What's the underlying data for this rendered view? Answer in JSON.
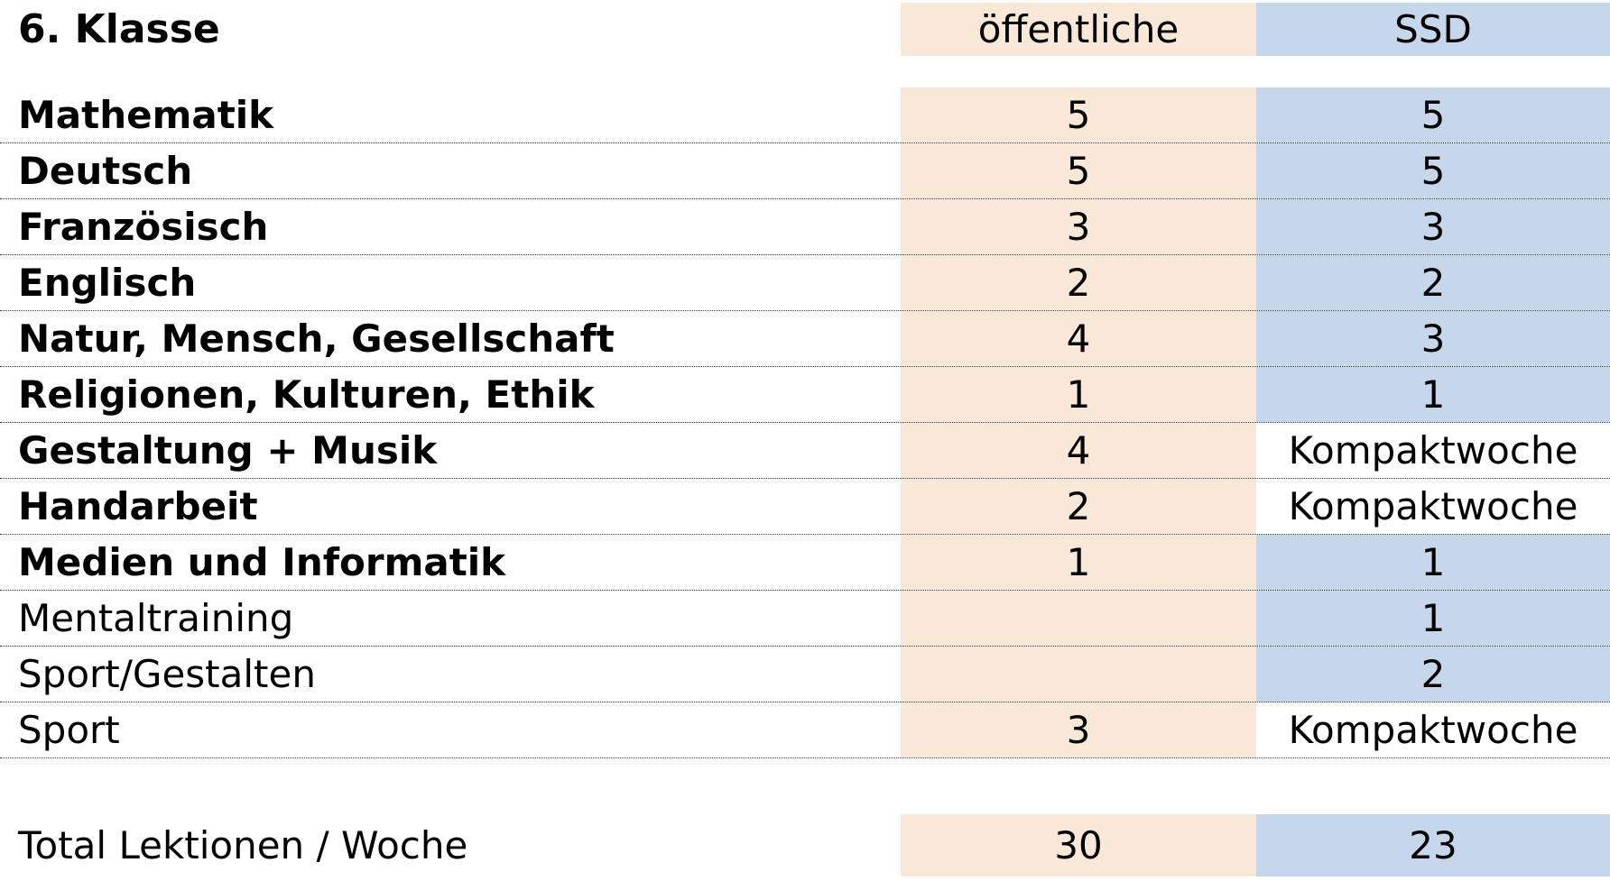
{
  "title": "6. Klasse",
  "columns": {
    "public": "öffentliche",
    "ssd": "SSD"
  },
  "rows": [
    {
      "subject": "Mathematik",
      "public": "5",
      "ssd": "5"
    },
    {
      "subject": "Deutsch",
      "public": "5",
      "ssd": "5"
    },
    {
      "subject": "Französisch",
      "public": "3",
      "ssd": "3"
    },
    {
      "subject": "Englisch",
      "public": "2",
      "ssd": "2"
    },
    {
      "subject": "Natur, Mensch, Gesellschaft",
      "public": "4",
      "ssd": "3"
    },
    {
      "subject": "Religionen, Kulturen, Ethik",
      "public": "1",
      "ssd": "1"
    },
    {
      "subject": "Gestaltung + Musik",
      "public": "4",
      "ssd": "Kompaktwoche"
    },
    {
      "subject": "Handarbeit",
      "public": "2",
      "ssd": "Kompaktwoche"
    },
    {
      "subject": "Medien und Informatik",
      "public": "1",
      "ssd": "1"
    },
    {
      "subject": "Mentaltraining",
      "public": "",
      "ssd": "1"
    },
    {
      "subject": "Sport/Gestalten",
      "public": "",
      "ssd": "2"
    },
    {
      "subject": "Sport",
      "public": "3",
      "ssd": "Kompaktwoche"
    }
  ],
  "total": {
    "label": "Total Lektionen / Woche",
    "public": "30",
    "ssd": "23"
  },
  "colors": {
    "public_bg": "#f9e7d8",
    "ssd_bg": "#c7d7eb"
  }
}
